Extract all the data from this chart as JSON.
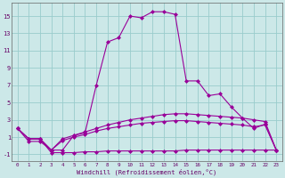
{
  "xlabel": "Windchill (Refroidissement éolien,°C)",
  "bg_color": "#cce8e8",
  "line_color": "#990099",
  "grid_color": "#99cccc",
  "x_ticks": [
    0,
    1,
    2,
    3,
    4,
    5,
    6,
    7,
    8,
    9,
    10,
    11,
    12,
    13,
    14,
    15,
    16,
    17,
    18,
    19,
    20,
    21,
    22,
    23
  ],
  "y_ticks": [
    -1,
    1,
    3,
    5,
    7,
    9,
    11,
    13,
    15
  ],
  "xlim": [
    -0.5,
    23.5
  ],
  "ylim": [
    -1.8,
    16.5
  ],
  "series": [
    [
      2.0,
      0.5,
      0.5,
      -0.5,
      -0.5,
      1.2,
      1.5,
      7.0,
      12.0,
      12.5,
      15.0,
      14.8,
      15.5,
      15.5,
      15.2,
      7.5,
      7.5,
      5.8,
      6.0,
      4.5,
      3.2,
      2.0,
      2.5,
      -0.5
    ],
    [
      2.0,
      0.8,
      0.8,
      -0.5,
      0.8,
      1.2,
      1.6,
      2.0,
      2.4,
      2.7,
      3.0,
      3.2,
      3.4,
      3.6,
      3.7,
      3.7,
      3.6,
      3.5,
      3.4,
      3.3,
      3.2,
      3.0,
      2.8,
      -0.5
    ],
    [
      2.0,
      0.8,
      0.8,
      -0.5,
      0.6,
      1.0,
      1.3,
      1.7,
      2.0,
      2.2,
      2.4,
      2.6,
      2.7,
      2.8,
      2.9,
      2.9,
      2.8,
      2.7,
      2.6,
      2.5,
      2.4,
      2.2,
      2.4,
      -0.5
    ],
    [
      2.0,
      0.8,
      0.8,
      -0.8,
      -0.8,
      -0.8,
      -0.7,
      -0.7,
      -0.6,
      -0.6,
      -0.6,
      -0.6,
      -0.6,
      -0.6,
      -0.6,
      -0.5,
      -0.5,
      -0.5,
      -0.5,
      -0.5,
      -0.5,
      -0.5,
      -0.5,
      -0.5
    ]
  ]
}
